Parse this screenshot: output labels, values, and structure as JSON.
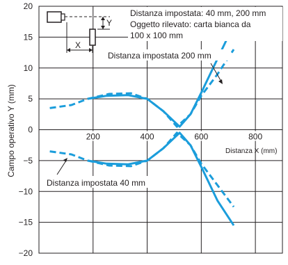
{
  "chart_data": {
    "type": "line",
    "title": "",
    "xlabel": "Distanza X (mm)",
    "ylabel": "Campo operativo Y (mm)",
    "xlim": [
      0,
      900
    ],
    "ylim": [
      -20,
      20
    ],
    "xticks": [
      200,
      400,
      600,
      800
    ],
    "yticks": [
      20,
      15,
      10,
      5,
      0,
      -5,
      -10,
      -15,
      -20
    ],
    "grid": true,
    "line_color": "#1b9ddb",
    "notes": [
      "Distanza impostata: 40 mm, 200 mm",
      "Oggetto rilevato: carta bianca da",
      "100 x 100 mm"
    ],
    "diagram_labels": {
      "x": "X",
      "y": "Y"
    },
    "annotations": [
      {
        "text": "Distanza impostata 200 mm"
      },
      {
        "text": "Distanza impostata 40 mm"
      }
    ],
    "series": [
      {
        "style": "solid",
        "upper": {
          "x": [
            180,
            250,
            330,
            400,
            460,
            520,
            560,
            600,
            660,
            720
          ],
          "y": [
            5.0,
            5.5,
            5.6,
            5.0,
            3.0,
            0.5,
            2.5,
            6.0,
            11.5,
            17.0
          ]
        },
        "lower": {
          "x": [
            180,
            250,
            330,
            400,
            460,
            520,
            560,
            600,
            660,
            720
          ],
          "y": [
            -5.0,
            -5.5,
            -5.6,
            -5.0,
            -3.0,
            -0.5,
            -2.5,
            -6.0,
            -11.5,
            -15.5
          ]
        }
      },
      {
        "style": "dashed",
        "upper": {
          "x": [
            40,
            120,
            180,
            260,
            340,
            400,
            460,
            510,
            560,
            600,
            660,
            720
          ],
          "y": [
            3.5,
            4.0,
            5.0,
            5.8,
            5.9,
            5.0,
            3.0,
            0.5,
            2.5,
            5.5,
            9.0,
            13.0
          ]
        },
        "lower": {
          "x": [
            40,
            120,
            180,
            260,
            340,
            400,
            460,
            510,
            560,
            600,
            660,
            720
          ],
          "y": [
            -3.5,
            -4.0,
            -5.0,
            -5.8,
            -5.9,
            -5.0,
            -3.0,
            -0.5,
            -2.5,
            -5.5,
            -9.0,
            -12.5
          ]
        }
      }
    ]
  }
}
